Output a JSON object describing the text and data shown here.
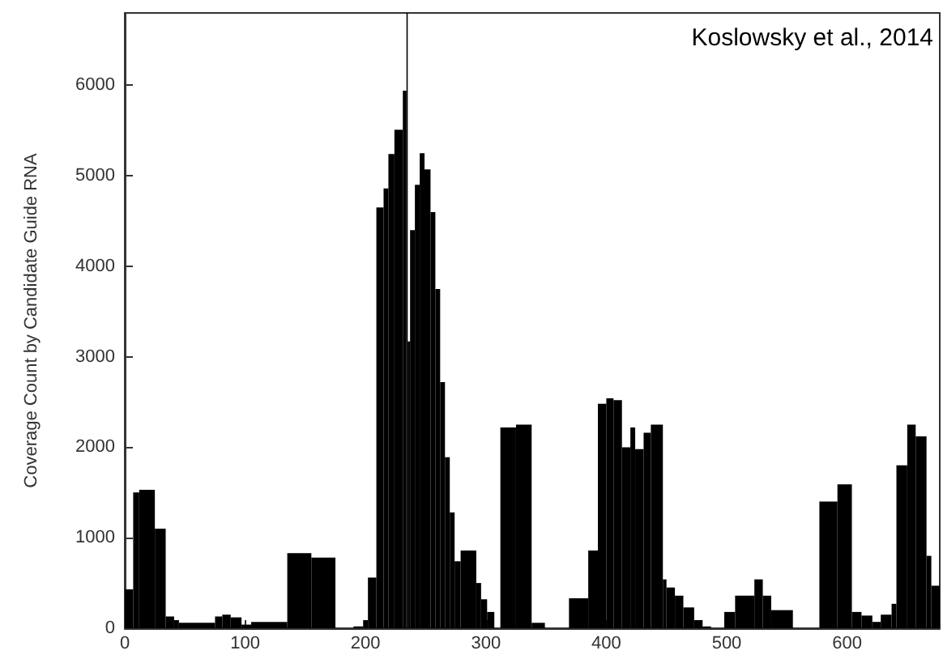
{
  "chart_data": {
    "type": "histogram",
    "ylabel": "Coverage Count by Candidate Guide RNA",
    "annotations": [
      "Koslowsky et al., 2014"
    ],
    "color": "#000000",
    "bins": [
      0,
      7,
      12,
      25,
      34,
      41,
      45,
      75,
      81,
      88,
      97,
      105,
      135,
      155,
      175,
      190,
      198,
      202,
      209,
      215,
      219,
      224,
      231,
      234,
      235,
      237,
      241,
      245,
      249,
      254,
      258,
      262,
      266,
      270,
      274,
      279,
      292,
      296,
      301,
      307,
      312,
      325,
      338,
      349,
      369,
      385,
      393,
      400,
      406,
      413,
      420,
      424,
      431,
      437,
      447,
      450,
      457,
      464,
      473,
      480,
      487,
      498,
      507,
      523,
      530,
      537,
      555,
      577,
      592,
      604,
      612,
      621,
      628,
      637,
      641,
      650,
      657,
      666,
      670,
      677
    ],
    "values": [
      430,
      1500,
      1530,
      1100,
      130,
      90,
      60,
      130,
      150,
      120,
      40,
      70,
      830,
      780,
      0,
      20,
      90,
      560,
      4650,
      4860,
      5240,
      5510,
      5940,
      6800,
      3170,
      4400,
      4900,
      5250,
      5070,
      4600,
      3750,
      2720,
      1890,
      1280,
      740,
      860,
      500,
      320,
      180,
      0,
      2220,
      2250,
      60,
      0,
      330,
      860,
      2480,
      2540,
      2520,
      2000,
      2220,
      1980,
      2160,
      2250,
      540,
      450,
      360,
      230,
      90,
      20,
      0,
      180,
      360,
      540,
      360,
      200,
      0,
      1400,
      1590,
      180,
      140,
      70,
      150,
      270,
      1800,
      2250,
      2120,
      800,
      470
    ],
    "xlim": [
      0,
      677
    ],
    "xticks": [
      0,
      100,
      200,
      300,
      400,
      500,
      600
    ],
    "ylim": [
      0,
      6800
    ],
    "yticks": [
      0,
      1000,
      2000,
      3000,
      4000,
      5000,
      6000
    ],
    "grid": false
  }
}
